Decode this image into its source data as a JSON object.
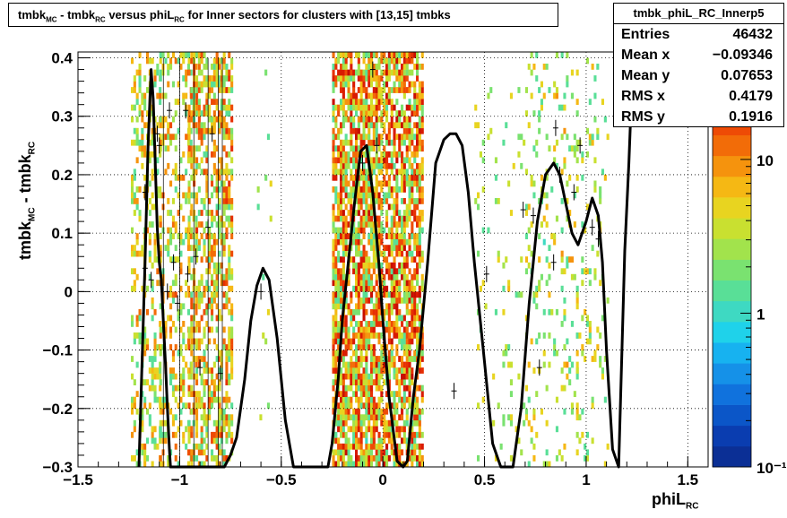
{
  "title": {
    "part1": "tmbk",
    "sub1": "MC",
    "part2": " - tmbk",
    "sub2": "RC",
    "part3": " versus phiL",
    "sub3": "RC",
    "part4": " for Inner sectors for clusters with [13,15] tmbks"
  },
  "stats": {
    "name": "tmbk_phiL_RC_Innerp5",
    "rows": [
      {
        "label": "Entries",
        "value": "46432"
      },
      {
        "label": "Mean x",
        "value": "−0.09346"
      },
      {
        "label": "Mean y",
        "value": "0.07653"
      },
      {
        "label": "RMS x",
        "value": "0.4179"
      },
      {
        "label": "RMS y",
        "value": "0.1916"
      }
    ]
  },
  "axes": {
    "x_title": "phiL",
    "x_sub": "RC",
    "y_title_a": "tmbk",
    "y_sub_a": "MC",
    "y_title_b": " - tmbk",
    "y_sub_b": "RC"
  },
  "colors": {
    "frame": "#000000",
    "grid": "#000000",
    "palette": [
      "#0b2f95",
      "#0a3db0",
      "#0b56c8",
      "#1072dd",
      "#1591e8",
      "#17b2f0",
      "#1fd2ea",
      "#3ed9c2",
      "#59df97",
      "#7ae270",
      "#a2e34c",
      "#c9e030",
      "#e8d420",
      "#f5b814",
      "#f5930d",
      "#f26c08",
      "#ee4b05",
      "#e62f03",
      "#d91b02",
      "#c70e01"
    ]
  },
  "chart_data": {
    "type": "heatmap",
    "xlim": [
      -1.5,
      1.6
    ],
    "ylim": [
      -0.3,
      0.41
    ],
    "x_ticks": [
      -1.5,
      -1,
      -0.5,
      0,
      0.5,
      1,
      1.5
    ],
    "x_tick_labels": [
      "−1.5",
      "−1",
      "−0.5",
      "0",
      "0.5",
      "1",
      "1.5"
    ],
    "y_ticks": [
      -0.3,
      -0.2,
      -0.1,
      0,
      0.1,
      0.2,
      0.3,
      0.4
    ],
    "y_tick_labels": [
      "−0.3",
      "−0.2",
      "−0.1",
      "0",
      "0.1",
      "0.2",
      "0.3",
      "0.4"
    ],
    "z_scale": "log",
    "z_range": [
      0.1,
      50
    ],
    "z_ticks": [
      0.1,
      1,
      10
    ],
    "z_tick_labels": [
      "10⁻¹",
      "1",
      "10"
    ],
    "grid": true,
    "cell_size": [
      0.0125,
      0.01
    ],
    "clusters": [
      {
        "x_range": [
          -1.24,
          -1.1
        ],
        "density": 0.35,
        "z_max": 12
      },
      {
        "x_range": [
          -1.1,
          -0.92
        ],
        "density": 0.3,
        "z_max": 15
      },
      {
        "x_range": [
          -0.96,
          -0.8
        ],
        "density": 0.5,
        "z_max": 20
      },
      {
        "x_range": [
          -0.8,
          -0.75
        ],
        "density": 0.55,
        "z_max": 25
      },
      {
        "x_range": [
          -0.62,
          -0.55
        ],
        "density": 0.03,
        "z_max": 5
      },
      {
        "x_range": [
          -0.25,
          0.0
        ],
        "density": 0.75,
        "z_max": 40
      },
      {
        "x_range": [
          0.0,
          0.2
        ],
        "density": 0.7,
        "z_max": 45
      },
      {
        "x_range": [
          0.45,
          0.7
        ],
        "density": 0.05,
        "z_max": 6
      },
      {
        "x_range": [
          0.7,
          0.95
        ],
        "density": 0.14,
        "z_max": 8
      },
      {
        "x_range": [
          0.95,
          1.1
        ],
        "density": 0.1,
        "z_max": 7
      }
    ],
    "series": [
      {
        "x": [
          -1.2,
          -1.17,
          -1.155,
          -1.14,
          -1.13,
          -1.12,
          -1.11,
          -1.1,
          -1.09,
          -1.08,
          -1.07,
          -1.06,
          -1.05,
          -1.045,
          -1.04,
          -0.78,
          -0.75,
          -0.72,
          -0.68,
          -0.65,
          -0.62,
          -0.59,
          -0.56,
          -0.52,
          -0.48,
          -0.44,
          -0.42,
          -0.27,
          -0.25,
          -0.22,
          -0.2,
          -0.17,
          -0.14,
          -0.11,
          -0.08,
          -0.05,
          -0.02,
          0.0,
          0.03,
          0.07,
          0.1,
          0.12,
          0.15,
          0.18,
          0.22,
          0.26,
          0.3,
          0.33,
          0.36,
          0.39,
          0.42,
          0.45,
          0.5,
          0.54,
          0.58,
          0.62,
          0.64,
          0.68,
          0.72,
          0.76,
          0.8,
          0.84,
          0.87,
          0.9,
          0.93,
          0.96,
          1.0,
          1.03,
          1.06,
          1.08,
          1.1,
          1.13,
          1.16,
          1.19,
          1.21,
          1.23
        ],
        "y": [
          -0.31,
          0.05,
          0.25,
          0.38,
          0.33,
          0.22,
          0.11,
          0.05,
          0.02,
          -0.05,
          -0.12,
          -0.2,
          -0.27,
          -0.3,
          -0.31,
          -0.31,
          -0.28,
          -0.25,
          -0.15,
          -0.05,
          0.01,
          0.04,
          0.02,
          -0.08,
          -0.22,
          -0.3,
          -0.31,
          -0.31,
          -0.26,
          -0.15,
          -0.05,
          0.05,
          0.15,
          0.24,
          0.25,
          0.17,
          0.05,
          -0.05,
          -0.18,
          -0.29,
          -0.31,
          -0.29,
          -0.18,
          -0.1,
          0.05,
          0.22,
          0.26,
          0.27,
          0.27,
          0.25,
          0.17,
          0.05,
          -0.12,
          -0.26,
          -0.3,
          -0.31,
          -0.3,
          -0.2,
          -0.02,
          0.12,
          0.2,
          0.22,
          0.2,
          0.15,
          0.1,
          0.08,
          0.12,
          0.16,
          0.13,
          0.05,
          -0.1,
          -0.27,
          -0.31,
          0.07,
          0.22,
          0.4
        ]
      }
    ],
    "profile_points": [
      {
        "x": -1.17,
        "y": 0.04
      },
      {
        "x": -1.17,
        "y": 0.17
      },
      {
        "x": -1.14,
        "y": 0.02
      },
      {
        "x": -1.11,
        "y": 0.27
      },
      {
        "x": -1.1,
        "y": 0.25
      },
      {
        "x": -1.06,
        "y": 0.0
      },
      {
        "x": -1.05,
        "y": 0.31
      },
      {
        "x": -1.03,
        "y": 0.05
      },
      {
        "x": -1.01,
        "y": -0.02
      },
      {
        "x": -0.97,
        "y": 0.31
      },
      {
        "x": -0.96,
        "y": 0.03
      },
      {
        "x": -0.92,
        "y": 0.06
      },
      {
        "x": -0.9,
        "y": -0.13
      },
      {
        "x": -0.86,
        "y": 0.11
      },
      {
        "x": -0.84,
        "y": 0.27
      },
      {
        "x": -0.8,
        "y": -0.14
      },
      {
        "x": -0.1,
        "y": 0.22
      },
      {
        "x": -0.03,
        "y": 0.25
      },
      {
        "x": -0.05,
        "y": 0.38
      },
      {
        "x": 0.51,
        "y": 0.03
      },
      {
        "x": 0.69,
        "y": 0.14
      },
      {
        "x": 0.74,
        "y": 0.13
      },
      {
        "x": 0.77,
        "y": -0.13
      },
      {
        "x": 0.85,
        "y": 0.28
      },
      {
        "x": 0.87,
        "y": 0.2
      },
      {
        "x": 0.84,
        "y": 0.05
      },
      {
        "x": 0.94,
        "y": 0.17
      },
      {
        "x": 0.97,
        "y": 0.25
      },
      {
        "x": 1.03,
        "y": 0.11
      },
      {
        "x": 1.06,
        "y": 0.09
      },
      {
        "x": -0.6,
        "y": 0.0
      },
      {
        "x": 0.35,
        "y": -0.17
      }
    ]
  }
}
